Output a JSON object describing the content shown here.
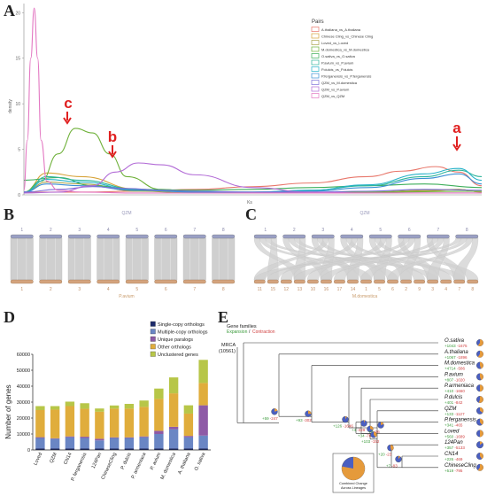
{
  "panels": {
    "a": {
      "letter": "A",
      "ylabel": "density",
      "xlabel": "Ks",
      "legend_title": "Pairs",
      "annotations": [
        "a",
        "b",
        "c"
      ]
    },
    "b": {
      "letter": "B",
      "top_label": "QZM",
      "bottom_label": "P.avium",
      "top_chr": [
        "1",
        "2",
        "3",
        "4",
        "5",
        "6",
        "7",
        "8"
      ],
      "bottom_chr": [
        "1",
        "2",
        "3",
        "4",
        "5",
        "6",
        "7",
        "8"
      ]
    },
    "c": {
      "letter": "C",
      "top_label": "QZM",
      "bottom_label": "M.domestica",
      "top_chr": [
        "1",
        "2",
        "3",
        "4",
        "5",
        "6",
        "7",
        "8"
      ],
      "bottom_chr": [
        "11",
        "15",
        "12",
        "13",
        "10",
        "16",
        "17",
        "14",
        "1",
        "5",
        "6",
        "2",
        "9",
        "3",
        "4",
        "7",
        "8"
      ]
    },
    "d": {
      "letter": "D",
      "ylabel": "Number of genes"
    },
    "e": {
      "letter": "E",
      "legend_title": "Gene families",
      "legend_exp": "Expansion",
      "legend_con": "Contraction",
      "mrca": "MRCA",
      "mrca_count": "(10561)",
      "pie_note_line1": "Combined Change",
      "pie_note_line2": "Across Lineages",
      "nodes": [
        {
          "exp": "+59",
          "con": "-247"
        },
        {
          "exp": "+93",
          "con": "-302"
        },
        {
          "exp": "+126",
          "con": "-1646"
        },
        {
          "exp": "+4",
          "con": "-329"
        },
        {
          "exp": "+34",
          "con": "-76"
        },
        {
          "exp": "+103",
          "con": "-152"
        },
        {
          "exp": "+7",
          "con": "-26"
        },
        {
          "exp": "+20",
          "con": "-23"
        },
        {
          "exp": "+7",
          "con": "-83"
        }
      ],
      "taxa": [
        {
          "name": "O.sativa",
          "exp": "+1043",
          "con": "-1675"
        },
        {
          "name": "A.thaliana",
          "exp": "+1067",
          "con": "-1896"
        },
        {
          "name": "M.domestica",
          "exp": "+4714",
          "con": "-586"
        },
        {
          "name": "P.avium",
          "exp": "+807",
          "con": "-1020"
        },
        {
          "name": "P.armeniaca",
          "exp": "+410",
          "con": "-1660"
        },
        {
          "name": "P.dulcis",
          "exp": "+401",
          "con": "-842"
        },
        {
          "name": "QZM",
          "exp": "+133",
          "con": "-1127"
        },
        {
          "name": "P.ferganensis",
          "exp": "+341",
          "con": "-465"
        },
        {
          "name": "Loved",
          "exp": "+560",
          "con": "-1689"
        },
        {
          "name": "124Pan",
          "exp": "+357",
          "con": "-5133"
        },
        {
          "name": "CN14",
          "exp": "+226",
          "con": "-469"
        },
        {
          "name": "ChineseCling",
          "exp": "+519",
          "con": "-795"
        }
      ]
    }
  },
  "chart_data": [
    {
      "type": "line",
      "title": "",
      "xlabel": "Ks",
      "ylabel": "density",
      "ylim": [
        0,
        21
      ],
      "xlim": [
        0,
        4
      ],
      "y_ticks": [
        "0",
        "5",
        "10",
        "15",
        "20"
      ],
      "grid": false,
      "legend_title": "Pairs",
      "legend_position": "top-right",
      "series": [
        {
          "name": "A.thaliana_vs_A.thaliana",
          "color": "#e8776b",
          "x": [
            0,
            0.5,
            1.0,
            1.5,
            2.0,
            2.5,
            3.0,
            3.3,
            3.6,
            3.8,
            4.0
          ],
          "y": [
            0.3,
            0.3,
            0.4,
            0.6,
            0.9,
            1.3,
            2.0,
            2.6,
            3.1,
            2.5,
            1.0
          ]
        },
        {
          "name": "Chinese Cling_vs_Chinese Cling",
          "color": "#d7a43b",
          "x": [
            0,
            0.2,
            0.5,
            1.0,
            1.5,
            2.0,
            2.5,
            3.0,
            3.5,
            3.8,
            4.0
          ],
          "y": [
            0.3,
            2.4,
            2.0,
            0.6,
            0.3,
            0.2,
            0.2,
            0.2,
            0.4,
            0.6,
            0.3
          ]
        },
        {
          "name": "Loved_vs_Loved",
          "color": "#a8a34a",
          "x": [
            0,
            0.2,
            0.5,
            1.0,
            1.5,
            2.0,
            2.5,
            3.0,
            3.5,
            3.8,
            4.0
          ],
          "y": [
            0.3,
            1.4,
            1.2,
            0.4,
            0.2,
            0.2,
            0.2,
            0.3,
            0.5,
            0.6,
            0.3
          ]
        },
        {
          "name": "M.domestica_vs_M.domestica",
          "color": "#6fb13a",
          "x": [
            0,
            0.15,
            0.3,
            0.45,
            0.6,
            0.75,
            0.9,
            1.2,
            1.5,
            2.0,
            3.0,
            4.0
          ],
          "y": [
            0.3,
            1.5,
            4.5,
            7.3,
            6.8,
            4.5,
            2.0,
            0.6,
            0.3,
            0.2,
            0.3,
            0.4
          ]
        },
        {
          "name": "O.sativa_vs_O.sativa",
          "color": "#3dae5a",
          "x": [
            0,
            0.3,
            0.6,
            1.0,
            1.5,
            2.0,
            2.5,
            3.0,
            3.5,
            4.0
          ],
          "y": [
            1.6,
            1.9,
            1.0,
            0.6,
            0.5,
            0.6,
            0.8,
            1.0,
            1.2,
            0.8
          ]
        },
        {
          "name": "P.avium_vs_P.avium",
          "color": "#2fb59a",
          "x": [
            0,
            0.2,
            0.5,
            1.0,
            1.5,
            2.0,
            2.5,
            3.0,
            3.5,
            3.8,
            4.0
          ],
          "y": [
            0.3,
            2.0,
            1.6,
            0.6,
            0.3,
            0.3,
            0.5,
            1.0,
            2.0,
            2.7,
            2.0
          ]
        },
        {
          "name": "P.dulcis_vs_P.dulcis",
          "color": "#26b2c8",
          "x": [
            0,
            0.2,
            0.5,
            1.0,
            1.5,
            2.0,
            2.5,
            3.0,
            3.5,
            3.8,
            4.0
          ],
          "y": [
            0.3,
            1.7,
            1.4,
            0.5,
            0.3,
            0.3,
            0.5,
            1.1,
            2.3,
            2.9,
            1.6
          ]
        },
        {
          "name": "P.ferganensis_vs_P.ferganensis",
          "color": "#3b8fd4",
          "x": [
            0,
            0.2,
            0.5,
            1.0,
            1.5,
            2.0,
            2.5,
            3.0,
            3.5,
            3.8,
            4.0
          ],
          "y": [
            0.3,
            1.2,
            1.0,
            0.5,
            0.3,
            0.3,
            0.4,
            0.8,
            1.8,
            2.3,
            1.2
          ]
        },
        {
          "name": "QZM_vs_M.domestica",
          "color": "#7c6fd8",
          "x": [
            0,
            0.3,
            0.6,
            0.9,
            1.2,
            1.5,
            2.0,
            2.5,
            3.0,
            3.5,
            4.0
          ],
          "y": [
            0.3,
            0.6,
            0.9,
            0.7,
            0.5,
            0.4,
            0.3,
            0.3,
            0.4,
            0.6,
            0.5
          ]
        },
        {
          "name": "QZM_vs_P.avium",
          "color": "#b26bd6",
          "x": [
            0,
            0.3,
            0.6,
            0.8,
            1.0,
            1.2,
            1.5,
            2.0,
            2.5,
            3.0,
            4.0
          ],
          "y": [
            0.2,
            0.3,
            1.0,
            2.5,
            3.5,
            3.3,
            2.2,
            0.8,
            0.3,
            0.2,
            0.2
          ]
        },
        {
          "name": "QZM_vs_QZM",
          "color": "#e377c2",
          "x": [
            0,
            0.03,
            0.06,
            0.09,
            0.12,
            0.15,
            0.2,
            0.3,
            0.5,
            1.0,
            2.0,
            4.0
          ],
          "y": [
            0.5,
            6.0,
            15.0,
            20.5,
            15.0,
            6.0,
            1.5,
            0.5,
            0.3,
            0.2,
            0.2,
            0.2
          ]
        }
      ]
    },
    {
      "type": "bar",
      "title": "",
      "xlabel": "",
      "ylabel": "Number of genes",
      "ylim": [
        0,
        60000
      ],
      "y_ticks": [
        "0",
        "10000",
        "20000",
        "30000",
        "40000",
        "50000",
        "60000"
      ],
      "grid": false,
      "legend_position": "top-right",
      "categories": [
        "Loved",
        "QZM",
        "CN14",
        "P. ferganensis",
        "124Pan",
        "ChineseCling",
        "P. dulcis",
        "P. armeniaca",
        "P. avium",
        "M. domestica",
        "A. thaliana",
        "O. sativa"
      ],
      "series": [
        {
          "name": "Single-copy orthologs",
          "color": "#1d2b6b",
          "values": [
            1000,
            1000,
            1000,
            1000,
            1000,
            1000,
            1000,
            1000,
            1000,
            1000,
            1000,
            1000
          ]
        },
        {
          "name": "Multiple-copy orthologs",
          "color": "#6a86c4",
          "values": [
            6500,
            6000,
            7000,
            6500,
            5000,
            6500,
            6500,
            7000,
            9000,
            12000,
            7000,
            8000
          ]
        },
        {
          "name": "Unique paralogs",
          "color": "#8e5aa6",
          "values": [
            500,
            300,
            500,
            800,
            1000,
            400,
            400,
            500,
            2000,
            1500,
            800,
            19000
          ]
        },
        {
          "name": "Other orthologs",
          "color": "#e0ad3c",
          "values": [
            17000,
            18000,
            19000,
            17500,
            17000,
            18000,
            18000,
            18500,
            20000,
            21000,
            14000,
            14000
          ]
        },
        {
          "name": "Unclustered genes",
          "color": "#b7c648",
          "values": [
            2500,
            2200,
            2800,
            3500,
            2000,
            2000,
            3000,
            4000,
            6500,
            10000,
            5200,
            14500
          ]
        }
      ]
    }
  ]
}
